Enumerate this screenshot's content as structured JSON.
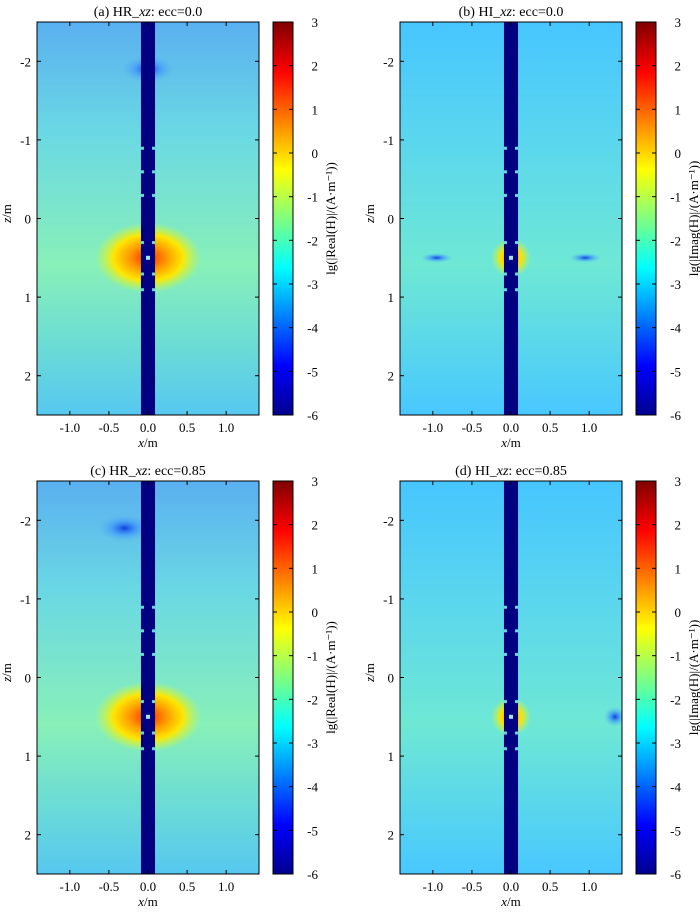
{
  "panels": [
    {
      "title_prefix": "(a) HR_",
      "title_var": "xz",
      "title_suffix": ": ecc=0.0",
      "kind": "real",
      "ecc": "0.0"
    },
    {
      "title_prefix": "(b) HI_",
      "title_var": "xz",
      "title_suffix": ": ecc=0.0",
      "kind": "imag",
      "ecc": "0.0"
    },
    {
      "title_prefix": "(c) HR_",
      "title_var": "xz",
      "title_suffix": ": ecc=0.85",
      "kind": "real",
      "ecc": "0.85"
    },
    {
      "title_prefix": "(d) HI_",
      "title_var": "xz",
      "title_suffix": ": ecc=0.85",
      "kind": "imag",
      "ecc": "0.85"
    }
  ],
  "axes": {
    "xlabel_var": "x",
    "xlabel_unit": "/m",
    "ylabel_var": "z",
    "ylabel_unit": "/m",
    "xticks": [
      "-1.0",
      "-0.5",
      "0.0",
      "0.5",
      "1.0"
    ],
    "yticks": [
      "-2",
      "-1",
      "0",
      "1",
      "2"
    ]
  },
  "colorbar": {
    "ticks": [
      "3",
      "2",
      "1",
      "0",
      "-1",
      "-2",
      "-3",
      "-4",
      "-5",
      "-6"
    ],
    "label_real": "lg(|Real(H)|/(A·m⁻¹))",
    "label_imag": "lg(|Imag(H)|/(A·m⁻¹))"
  },
  "chart_data": [
    {
      "type": "heatmap",
      "title": "(a) HR_xz: ecc=0.0",
      "xlabel": "x/m",
      "ylabel": "z/m",
      "xlim": [
        -1.42,
        1.42
      ],
      "ylim": [
        -2.5,
        2.5
      ],
      "y_reversed": true,
      "colorbar_range": [
        -6,
        3
      ],
      "colorbar_label": "lg(|Real(H)|/(A·m⁻¹))"
    },
    {
      "type": "heatmap",
      "title": "(b) HI_xz: ecc=0.0",
      "xlabel": "x/m",
      "ylabel": "z/m",
      "xlim": [
        -1.42,
        1.42
      ],
      "ylim": [
        -2.5,
        2.5
      ],
      "y_reversed": true,
      "colorbar_range": [
        -6,
        3
      ],
      "colorbar_label": "lg(|Imag(H)|/(A·m⁻¹))"
    },
    {
      "type": "heatmap",
      "title": "(c) HR_xz: ecc=0.85",
      "xlabel": "x/m",
      "ylabel": "z/m",
      "xlim": [
        -1.42,
        1.42
      ],
      "ylim": [
        -2.5,
        2.5
      ],
      "y_reversed": true,
      "colorbar_range": [
        -6,
        3
      ],
      "colorbar_label": "lg(|Real(H)|/(A·m⁻¹))"
    },
    {
      "type": "heatmap",
      "title": "(d) HI_xz: ecc=0.85",
      "xlabel": "x/m",
      "ylabel": "z/m",
      "xlim": [
        -1.42,
        1.42
      ],
      "ylim": [
        -2.5,
        2.5
      ],
      "y_reversed": true,
      "colorbar_range": [
        -6,
        3
      ],
      "colorbar_label": "lg(|Imag(H)|/(A·m⁻¹))"
    }
  ]
}
